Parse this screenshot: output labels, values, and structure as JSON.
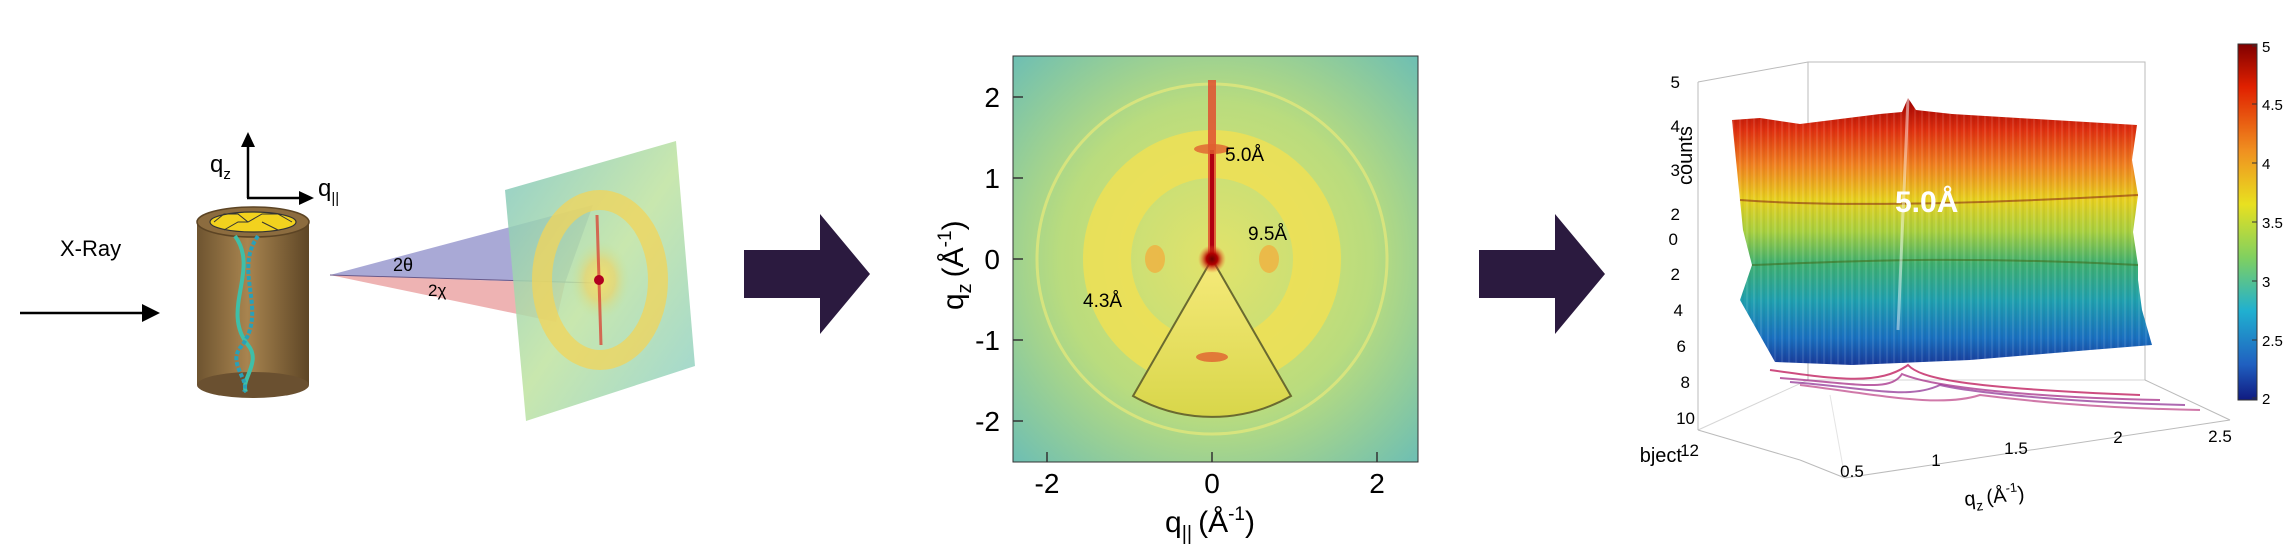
{
  "panel1": {
    "xray_label": "X-Ray",
    "axis_qz": "q",
    "axis_qz_sub": "z",
    "axis_qpar": "q",
    "axis_qpar_sub": "||",
    "angle_2theta": "2θ",
    "angle_2chi": "2χ"
  },
  "panel2": {
    "y_label_main": "q",
    "y_label_sub": "z",
    "y_label_unit": "(Å",
    "y_label_exp": "-1",
    "y_label_close": ")",
    "x_label_main": "q",
    "x_label_sub": "||",
    "x_label_unit": "(Å",
    "x_label_exp": "-1",
    "x_label_close": ")",
    "x_ticks": [
      "-2",
      "0",
      "2"
    ],
    "y_ticks": [
      "2",
      "1",
      "0",
      "-1",
      "-2"
    ],
    "annotations": [
      "5.0Å",
      "9.5Å",
      "4.3Å"
    ]
  },
  "panel3": {
    "z_label": "counts",
    "z_ticks": [
      "5",
      "4",
      "3",
      "2"
    ],
    "subject_label": "Subject",
    "subject_ticks": [
      "0",
      "2",
      "4",
      "6",
      "8",
      "10",
      "12"
    ],
    "x_ticks": [
      "0.5",
      "1",
      "1.5",
      "2",
      "2.5"
    ],
    "x_label_main": "q",
    "x_label_sub": "z",
    "x_label_unit": "(Å",
    "x_label_exp": "-1",
    "x_label_close": ")",
    "peak_annotation": "5.0Å",
    "colorbar_ticks": [
      "5",
      "4.5",
      "4",
      "3.5",
      "3",
      "2.5",
      "2"
    ]
  },
  "colors": {
    "arrow": "#2b1a3f",
    "cylinder": "#8b6a3e",
    "jet_high": "#b40000",
    "jet_low": "#1a2a9a"
  }
}
